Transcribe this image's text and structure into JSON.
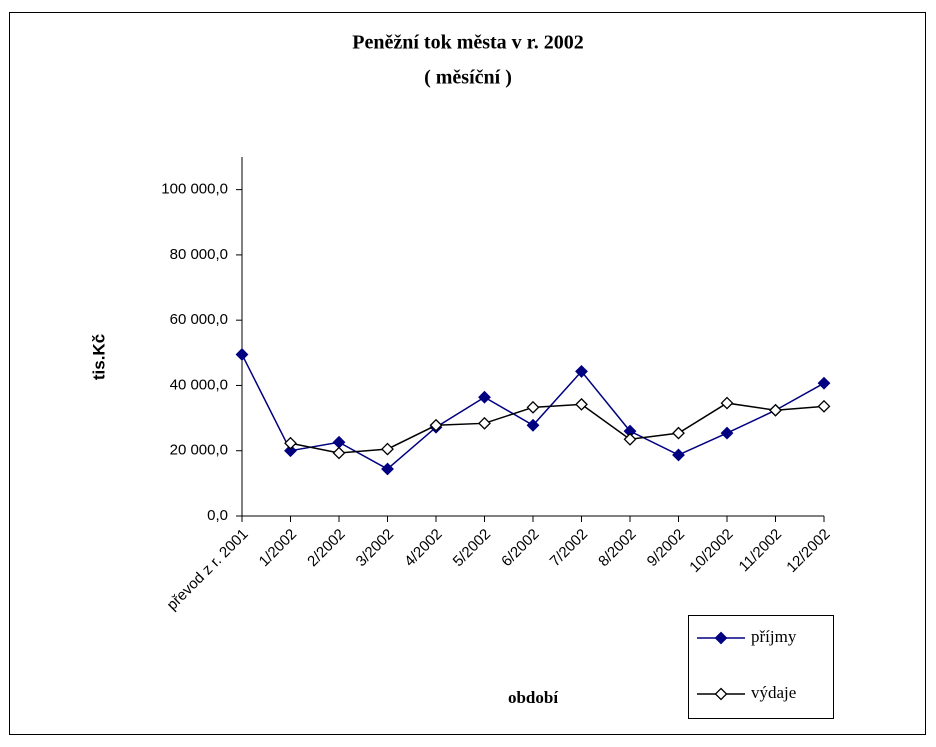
{
  "chart_data": {
    "type": "line",
    "title": "Peněžní tok města v r. 2002",
    "subtitle": "( měsíční )",
    "x_label": "období",
    "y_label": "tis.Kč",
    "categories": [
      "převod z r. 2001",
      "1/2002",
      "2/2002",
      "3/2002",
      "4/2002",
      "5/2002",
      "6/2002",
      "7/2002",
      "8/2002",
      "9/2002",
      "10/2002",
      "11/2002",
      "12/2002"
    ],
    "series": [
      {
        "name": "příjmy",
        "color": "#000080",
        "marker": "filled-diamond",
        "values": [
          49500,
          20000,
          22600,
          14400,
          27200,
          36400,
          27800,
          44300,
          26000,
          18700,
          25400,
          32400,
          40700
        ]
      },
      {
        "name": "výdaje",
        "color": "#000000",
        "marker": "open-diamond",
        "values": [
          null,
          22300,
          19300,
          20500,
          27800,
          28400,
          33300,
          34200,
          23500,
          25400,
          34600,
          32400,
          33600
        ]
      }
    ],
    "ylim": [
      0,
      110000
    ],
    "yticks": [
      {
        "value": 0,
        "label": "0,0"
      },
      {
        "value": 20000,
        "label": "20 000,0"
      },
      {
        "value": 40000,
        "label": "40 000,0"
      },
      {
        "value": 60000,
        "label": "60 000,0"
      },
      {
        "value": 80000,
        "label": "80 000,0"
      },
      {
        "value": 100000,
        "label": "100 000,0"
      }
    ],
    "grid": false,
    "legend": "bottom-right"
  }
}
